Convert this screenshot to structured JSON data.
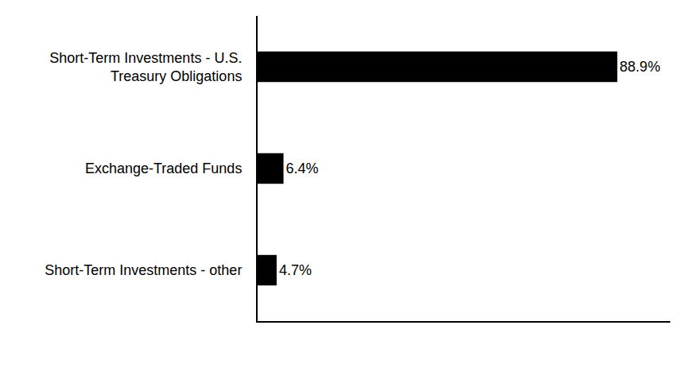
{
  "chart_data": {
    "type": "bar",
    "orientation": "horizontal",
    "categories": [
      "Short-Term Investments - U.S. Treasury Obligations",
      "Exchange-Traded Funds",
      "Short-Term Investments - other"
    ],
    "values": [
      88.9,
      6.4,
      4.7
    ],
    "value_labels": [
      "88.9%",
      "6.4%",
      "4.7%"
    ],
    "color": "#000000",
    "xlim": [
      0,
      102
    ],
    "data_labels": true,
    "tick_labels": "y",
    "grid": false
  }
}
